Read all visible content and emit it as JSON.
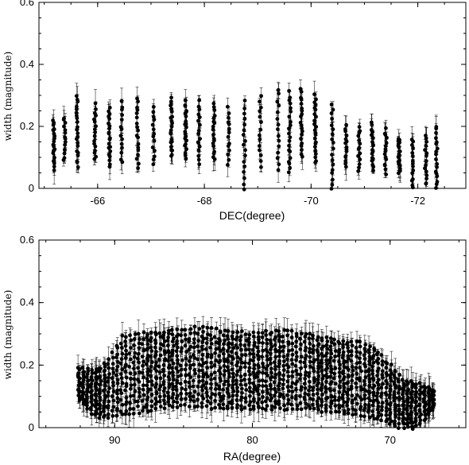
{
  "chart_data": [
    {
      "type": "scatter",
      "title": "",
      "xlabel": "DEC(degree)",
      "ylabel": "width (magnitude)",
      "xlim": [
        -64.9,
        -72.9
      ],
      "ylim": [
        0,
        0.6
      ],
      "grid": false,
      "x_ticks": [
        -66,
        -68,
        -70,
        -72
      ],
      "x_tick_labels": [
        "-66",
        "-68",
        "-70",
        "-72"
      ],
      "y_ticks": [
        0,
        0.2,
        0.4,
        0.6
      ],
      "y_tick_labels": [
        "0",
        "0.2",
        "0.4",
        "0.6"
      ],
      "error_bars": true,
      "series": [
        {
          "values_note": "columns of points at each DEC strip",
          "columns": [
            {
              "x": -65.18,
              "y_low": 0.06,
              "y_high": 0.22,
              "y_top_err": 0.28
            },
            {
              "x": -65.38,
              "y_low": 0.09,
              "y_high": 0.23,
              "y_top_err": 0.29
            },
            {
              "x": -65.62,
              "y_low": 0.07,
              "y_high": 0.3,
              "y_top_err": 0.38
            },
            {
              "x": -65.95,
              "y_low": 0.09,
              "y_high": 0.27,
              "y_top_err": 0.34
            },
            {
              "x": -66.22,
              "y_low": 0.07,
              "y_high": 0.26,
              "y_top_err": 0.34
            },
            {
              "x": -66.45,
              "y_low": 0.08,
              "y_high": 0.28,
              "y_top_err": 0.34
            },
            {
              "x": -66.75,
              "y_low": 0.07,
              "y_high": 0.29,
              "y_top_err": 0.35
            },
            {
              "x": -67.05,
              "y_low": 0.08,
              "y_high": 0.26,
              "y_top_err": 0.34
            },
            {
              "x": -67.38,
              "y_low": 0.1,
              "y_high": 0.29,
              "y_top_err": 0.35
            },
            {
              "x": -67.65,
              "y_low": 0.1,
              "y_high": 0.28,
              "y_top_err": 0.34
            },
            {
              "x": -67.9,
              "y_low": 0.08,
              "y_high": 0.28,
              "y_top_err": 0.3
            },
            {
              "x": -68.18,
              "y_low": 0.09,
              "y_high": 0.27,
              "y_top_err": 0.3
            },
            {
              "x": -68.45,
              "y_low": 0.08,
              "y_high": 0.26,
              "y_top_err": 0.31
            },
            {
              "x": -68.75,
              "y_low": 0.0,
              "y_high": 0.28,
              "y_top_err": 0.31
            },
            {
              "x": -69.05,
              "y_low": 0.07,
              "y_high": 0.3,
              "y_top_err": 0.33
            },
            {
              "x": -69.38,
              "y_low": 0.06,
              "y_high": 0.32,
              "y_top_err": 0.38
            },
            {
              "x": -69.6,
              "y_low": 0.05,
              "y_high": 0.31,
              "y_top_err": 0.34
            },
            {
              "x": -69.82,
              "y_low": 0.1,
              "y_high": 0.32,
              "y_top_err": 0.41
            },
            {
              "x": -70.08,
              "y_low": 0.08,
              "y_high": 0.3,
              "y_top_err": 0.38
            },
            {
              "x": -70.4,
              "y_low": 0.0,
              "y_high": 0.27,
              "y_top_err": 0.28
            },
            {
              "x": -70.65,
              "y_low": 0.07,
              "y_high": 0.2,
              "y_top_err": 0.24
            },
            {
              "x": -70.9,
              "y_low": 0.06,
              "y_high": 0.2,
              "y_top_err": 0.23
            },
            {
              "x": -71.15,
              "y_low": 0.06,
              "y_high": 0.21,
              "y_top_err": 0.24
            },
            {
              "x": -71.4,
              "y_low": 0.05,
              "y_high": 0.19,
              "y_top_err": 0.22
            },
            {
              "x": -71.65,
              "y_low": 0.05,
              "y_high": 0.16,
              "y_top_err": 0.19
            },
            {
              "x": -71.9,
              "y_low": 0.0,
              "y_high": 0.16,
              "y_top_err": 0.2
            },
            {
              "x": -72.15,
              "y_low": 0.01,
              "y_high": 0.17,
              "y_top_err": 0.2
            },
            {
              "x": -72.35,
              "y_low": 0.0,
              "y_high": 0.2,
              "y_top_err": 0.24
            }
          ]
        }
      ]
    },
    {
      "type": "scatter",
      "title": "",
      "xlabel": "RA(degree)",
      "ylabel": "width (magnitude)",
      "xlim": [
        95.5,
        64.5
      ],
      "ylim": [
        0,
        0.6
      ],
      "grid": false,
      "x_ticks": [
        90,
        80,
        70
      ],
      "x_tick_labels": [
        "90",
        "80",
        "70"
      ],
      "y_ticks": [
        0,
        0.2,
        0.4,
        0.6
      ],
      "y_tick_labels": [
        "0",
        "0.2",
        "0.4",
        "0.6"
      ],
      "error_bars": true,
      "series": [
        {
          "values_note": "columns of points at each RA strip",
          "x_range": [
            92.6,
            66.6
          ],
          "spacing": 0.31,
          "envelope": [
            {
              "x": 92.6,
              "y_low": 0.09,
              "y_high": 0.19
            },
            {
              "x": 91.5,
              "y_low": 0.04,
              "y_high": 0.18
            },
            {
              "x": 90.5,
              "y_low": 0.03,
              "y_high": 0.21
            },
            {
              "x": 89.5,
              "y_low": 0.04,
              "y_high": 0.29
            },
            {
              "x": 88.0,
              "y_low": 0.05,
              "y_high": 0.3
            },
            {
              "x": 86.0,
              "y_low": 0.07,
              "y_high": 0.31
            },
            {
              "x": 84.0,
              "y_low": 0.07,
              "y_high": 0.32
            },
            {
              "x": 82.0,
              "y_low": 0.06,
              "y_high": 0.31
            },
            {
              "x": 80.0,
              "y_low": 0.06,
              "y_high": 0.3
            },
            {
              "x": 78.0,
              "y_low": 0.06,
              "y_high": 0.31
            },
            {
              "x": 76.0,
              "y_low": 0.06,
              "y_high": 0.3
            },
            {
              "x": 74.0,
              "y_low": 0.05,
              "y_high": 0.28
            },
            {
              "x": 72.0,
              "y_low": 0.04,
              "y_high": 0.27
            },
            {
              "x": 71.0,
              "y_low": 0.03,
              "y_high": 0.25
            },
            {
              "x": 70.0,
              "y_low": 0.01,
              "y_high": 0.2
            },
            {
              "x": 69.0,
              "y_low": 0.0,
              "y_high": 0.15
            },
            {
              "x": 68.0,
              "y_low": 0.0,
              "y_high": 0.14
            },
            {
              "x": 67.0,
              "y_low": 0.05,
              "y_high": 0.13
            },
            {
              "x": 66.6,
              "y_low": 0.08,
              "y_high": 0.11
            }
          ]
        }
      ]
    }
  ]
}
